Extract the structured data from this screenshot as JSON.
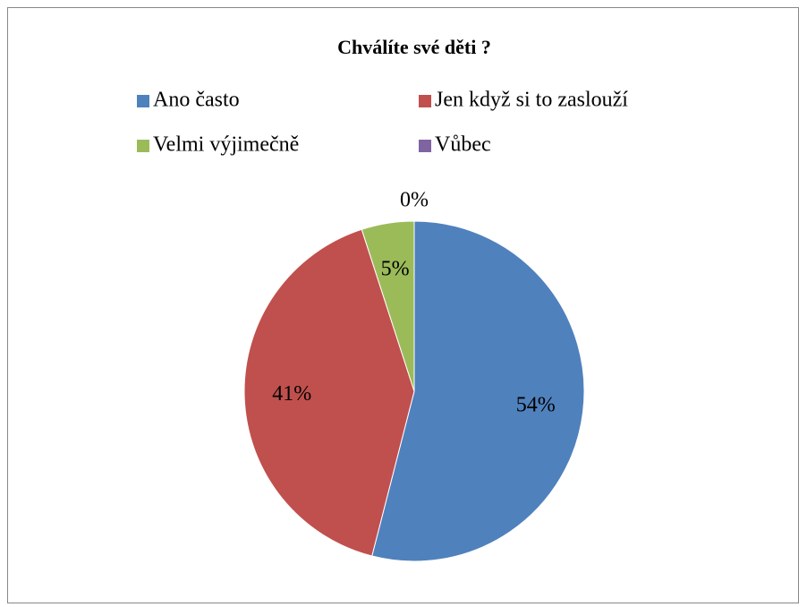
{
  "chart_data": {
    "type": "pie",
    "title": "Chválíte své děti ?",
    "categories": [
      "Ano často",
      "Jen když si to zaslouží",
      "Velmi výjimečně",
      "Vůbec"
    ],
    "values": [
      54,
      41,
      5,
      0
    ],
    "value_labels": [
      "54%",
      "41%",
      "5%",
      "0%"
    ],
    "colors": [
      "#4f81bd",
      "#c0504d",
      "#9bbb59",
      "#8064a2"
    ],
    "legend": "top"
  }
}
